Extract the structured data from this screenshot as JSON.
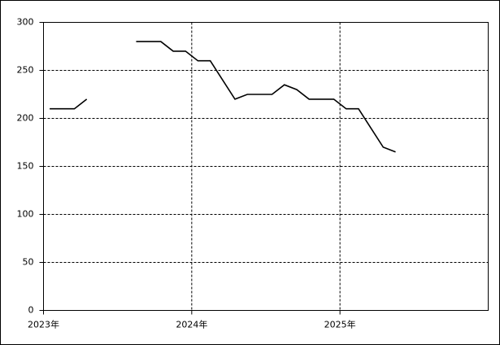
{
  "chart_data": {
    "type": "line",
    "x": [
      "2023-01",
      "2023-02",
      "2023-03",
      "2023-04",
      "2023-05",
      "2023-06",
      "2023-07",
      "2023-08",
      "2023-09",
      "2023-10",
      "2023-11",
      "2023-12",
      "2024-01",
      "2024-02",
      "2024-03",
      "2024-04",
      "2024-05",
      "2024-06",
      "2024-07",
      "2024-08",
      "2024-09",
      "2024-10",
      "2024-11",
      "2024-12",
      "2025-01",
      "2025-02",
      "2025-03",
      "2025-04",
      "2025-05"
    ],
    "series": [
      {
        "color": "#000000",
        "values": [
          210,
          210,
          210,
          220,
          null,
          null,
          null,
          280,
          280,
          280,
          270,
          270,
          260,
          260,
          240,
          220,
          225,
          225,
          225,
          235,
          230,
          220,
          220,
          220,
          210,
          210,
          190,
          170,
          165
        ]
      }
    ],
    "xlim": [
      "2023-01",
      "2026-01"
    ],
    "xticks": [
      {
        "value": "2023-01",
        "label": "2023年"
      },
      {
        "value": "2024-01",
        "label": "2024年"
      },
      {
        "value": "2025-01",
        "label": "2025年"
      }
    ],
    "ylim": [
      0,
      300
    ],
    "yticks": [
      0,
      50,
      100,
      150,
      200,
      250,
      300
    ],
    "grid": true
  }
}
